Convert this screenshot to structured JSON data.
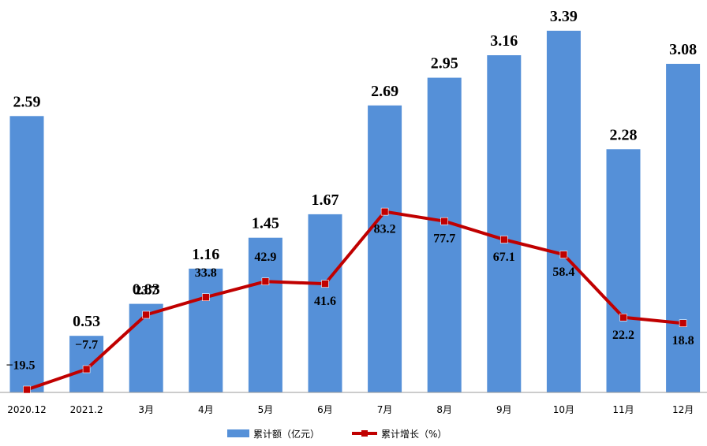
{
  "chart_data": {
    "type": "bar",
    "categories": [
      "2020.12",
      "2021.2",
      "3月",
      "4月",
      "5月",
      "6月",
      "7月",
      "8月",
      "9月",
      "10月",
      "11月",
      "12月"
    ],
    "series": [
      {
        "name": "累计额（亿元）",
        "type": "bar",
        "color": "#5590D8",
        "values": [
          2.59,
          0.53,
          0.83,
          1.16,
          1.45,
          1.67,
          2.69,
          2.95,
          3.16,
          3.39,
          2.28,
          3.08
        ],
        "labels": [
          "2.59",
          "0.53",
          "0.83",
          "1.16",
          "1.45",
          "1.67",
          "2.69",
          "2.95",
          "3.16",
          "3.39",
          "2.28",
          "3.08"
        ]
      },
      {
        "name": "累计增长（%）",
        "type": "line",
        "color": "#C00000",
        "values": [
          -19.5,
          -7.7,
          23.7,
          33.8,
          42.9,
          41.6,
          83.2,
          77.7,
          67.1,
          58.4,
          22.2,
          18.8
        ],
        "labels": [
          "−19.5",
          "−7.7",
          "23.7",
          "33.8",
          "42.9",
          "41.6",
          "83.2",
          "77.7",
          "67.1",
          "58.4",
          "22.2",
          "18.8"
        ]
      }
    ],
    "legend_position": "bottom-center",
    "grid": false
  }
}
